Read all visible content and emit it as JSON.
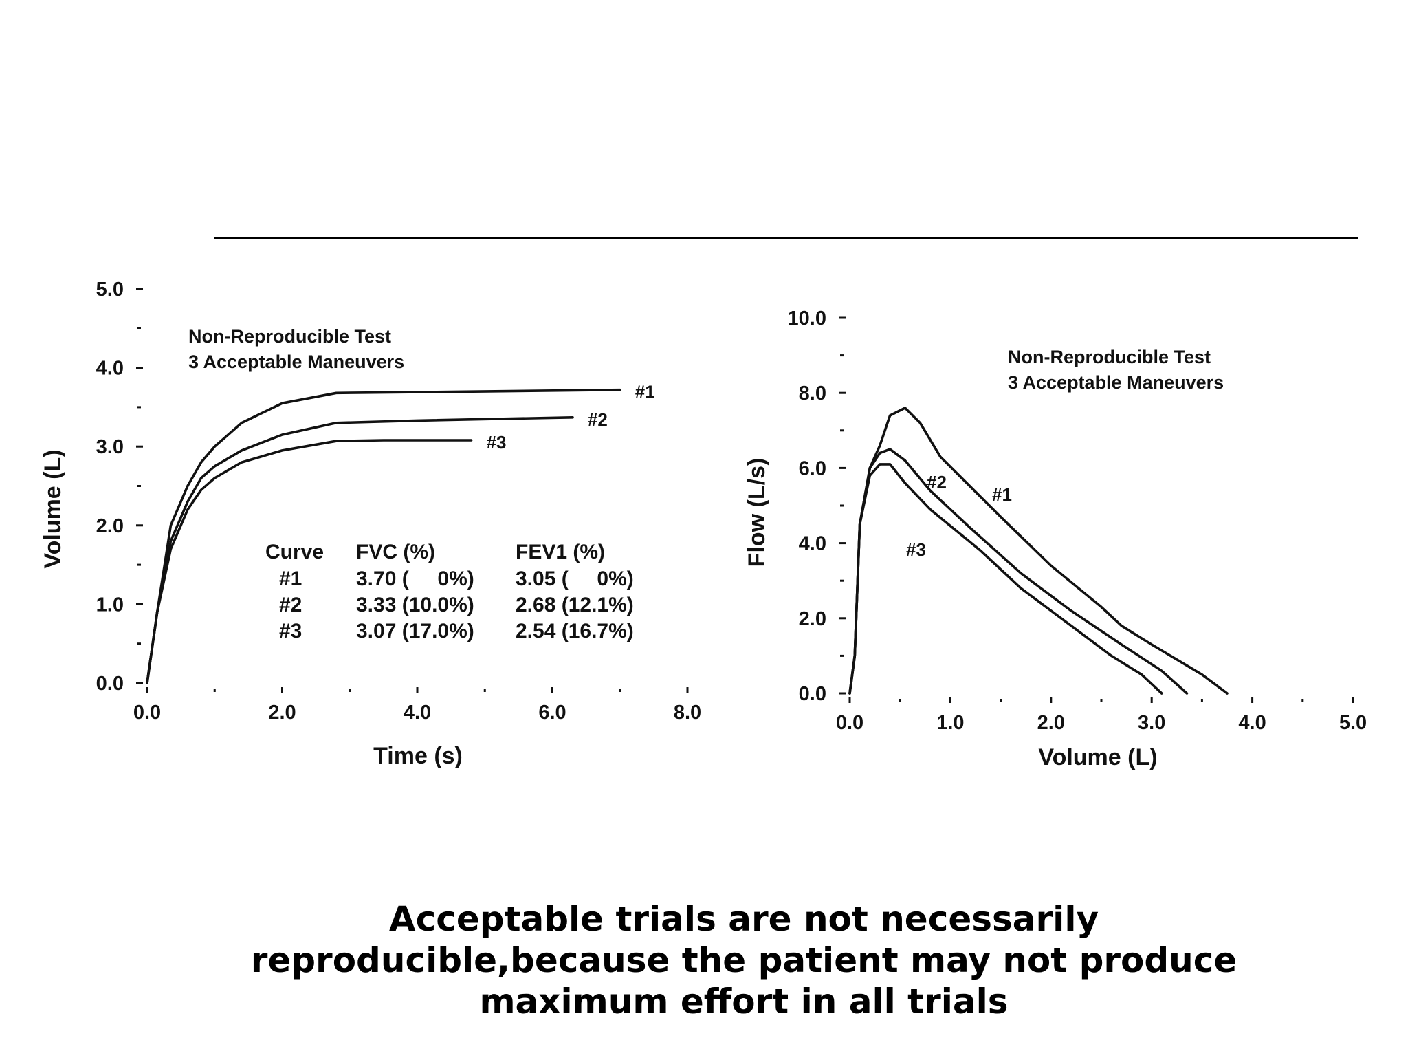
{
  "caption": {
    "lines": [
      "Acceptable trials are not necessarily",
      "reproducible,because the patient may not produce",
      "maximum effort in all trials"
    ]
  },
  "chart_data": [
    {
      "type": "line",
      "title": "",
      "annotation": [
        "Non-Reproducible Test",
        "3 Acceptable Maneuvers"
      ],
      "xlabel": "Time (s)",
      "ylabel": "Volume (L)",
      "xlim": [
        0,
        8
      ],
      "ylim": [
        0,
        5
      ],
      "xticks": [
        "0.0",
        "2.0",
        "4.0",
        "6.0",
        "8.0"
      ],
      "yticks": [
        "0.0",
        "1.0",
        "2.0",
        "3.0",
        "4.0",
        "5.0"
      ],
      "grid": false,
      "series": [
        {
          "name": "#1",
          "points": [
            [
              0,
              0
            ],
            [
              0.15,
              0.9
            ],
            [
              0.35,
              2.0
            ],
            [
              0.6,
              2.5
            ],
            [
              0.8,
              2.8
            ],
            [
              1.0,
              3.0
            ],
            [
              1.4,
              3.3
            ],
            [
              2.0,
              3.55
            ],
            [
              2.8,
              3.68
            ],
            [
              4.0,
              3.69
            ],
            [
              7.0,
              3.72
            ]
          ]
        },
        {
          "name": "#2",
          "points": [
            [
              0,
              0
            ],
            [
              0.15,
              0.9
            ],
            [
              0.35,
              1.8
            ],
            [
              0.6,
              2.3
            ],
            [
              0.8,
              2.6
            ],
            [
              1.0,
              2.75
            ],
            [
              1.4,
              2.95
            ],
            [
              2.0,
              3.15
            ],
            [
              2.8,
              3.3
            ],
            [
              4.0,
              3.33
            ],
            [
              6.3,
              3.37
            ]
          ]
        },
        {
          "name": "#3",
          "points": [
            [
              0,
              0
            ],
            [
              0.15,
              0.9
            ],
            [
              0.35,
              1.7
            ],
            [
              0.6,
              2.2
            ],
            [
              0.8,
              2.45
            ],
            [
              1.0,
              2.6
            ],
            [
              1.4,
              2.8
            ],
            [
              2.0,
              2.95
            ],
            [
              2.8,
              3.07
            ],
            [
              3.5,
              3.08
            ],
            [
              4.8,
              3.08
            ]
          ]
        }
      ],
      "table": {
        "headers": [
          "Curve",
          "FVC (%)",
          "FEV1 (%)"
        ],
        "rows": [
          [
            "#1",
            "3.70 (     0%)",
            "3.05 (     0%)"
          ],
          [
            "#2",
            "3.33 (10.0%)",
            "2.68 (12.1%)"
          ],
          [
            "#3",
            "3.07 (17.0%)",
            "2.54 (16.7%)"
          ]
        ]
      }
    },
    {
      "type": "line",
      "title": "",
      "annotation": [
        "Non-Reproducible Test",
        "3 Acceptable Maneuvers"
      ],
      "xlabel": "Volume (L)",
      "ylabel": "Flow (L/s)",
      "xlim": [
        0,
        5
      ],
      "ylim": [
        0,
        10
      ],
      "xticks": [
        "0.0",
        "1.0",
        "2.0",
        "3.0",
        "4.0",
        "5.0"
      ],
      "yticks": [
        "0.0",
        "2.0",
        "4.0",
        "6.0",
        "8.0",
        "10.0"
      ],
      "grid": false,
      "series": [
        {
          "name": "#1",
          "points": [
            [
              0,
              0
            ],
            [
              0.05,
              1.0
            ],
            [
              0.1,
              4.5
            ],
            [
              0.2,
              6.0
            ],
            [
              0.3,
              6.6
            ],
            [
              0.4,
              7.4
            ],
            [
              0.55,
              7.6
            ],
            [
              0.7,
              7.2
            ],
            [
              0.9,
              6.3
            ],
            [
              1.5,
              4.7
            ],
            [
              2.0,
              3.4
            ],
            [
              2.5,
              2.3
            ],
            [
              2.7,
              1.8
            ],
            [
              3.0,
              1.3
            ],
            [
              3.5,
              0.5
            ],
            [
              3.75,
              0
            ]
          ]
        },
        {
          "name": "#2",
          "points": [
            [
              0,
              0
            ],
            [
              0.05,
              1.0
            ],
            [
              0.1,
              4.5
            ],
            [
              0.2,
              6.0
            ],
            [
              0.3,
              6.4
            ],
            [
              0.4,
              6.5
            ],
            [
              0.55,
              6.2
            ],
            [
              0.8,
              5.4
            ],
            [
              1.2,
              4.4
            ],
            [
              1.7,
              3.2
            ],
            [
              2.2,
              2.2
            ],
            [
              2.7,
              1.3
            ],
            [
              3.1,
              0.6
            ],
            [
              3.35,
              0
            ]
          ]
        },
        {
          "name": "#3",
          "points": [
            [
              0,
              0
            ],
            [
              0.05,
              1.0
            ],
            [
              0.1,
              4.5
            ],
            [
              0.2,
              5.8
            ],
            [
              0.3,
              6.1
            ],
            [
              0.4,
              6.1
            ],
            [
              0.55,
              5.6
            ],
            [
              0.8,
              4.9
            ],
            [
              1.3,
              3.8
            ],
            [
              1.7,
              2.8
            ],
            [
              2.2,
              1.8
            ],
            [
              2.6,
              1.0
            ],
            [
              2.9,
              0.5
            ],
            [
              3.1,
              0
            ]
          ]
        }
      ],
      "curve_labels": [
        "#1",
        "#2",
        "#3"
      ]
    }
  ]
}
